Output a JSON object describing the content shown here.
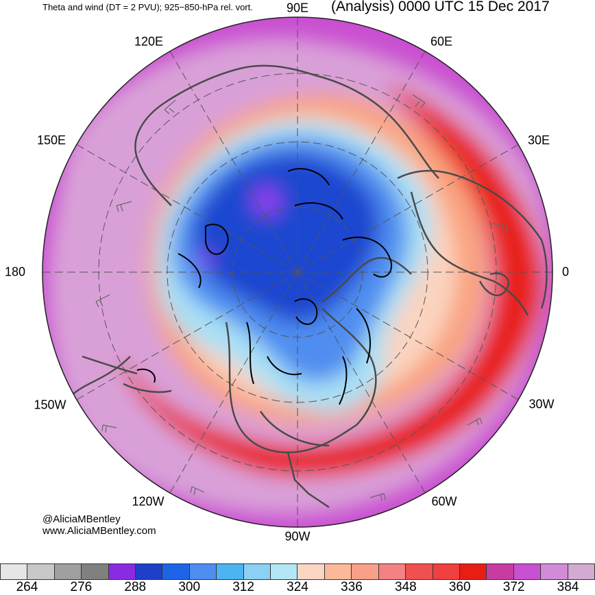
{
  "header": {
    "title_left": "Theta and wind (DT = 2 PVU); 925−850-hPa rel. vort.",
    "title_right": "(Analysis) 0000 UTC 15 Dec 2017"
  },
  "map": {
    "projection": "north-polar-stereographic",
    "longitude_labels": [
      "90E",
      "120E",
      "60E",
      "150E",
      "30E",
      "180",
      "0",
      "150W",
      "30W",
      "120W",
      "60W",
      "90W"
    ],
    "colors": {
      "outer_magenta": "#c94fd1",
      "light_purple": "#d9a0d8",
      "red": "#e8201c",
      "salmon": "#f9a37f",
      "peach": "#fbd4c0",
      "light_blue": "#a9e0f5",
      "mid_blue": "#4f8ef0",
      "deep_blue": "#1e47d0",
      "purple": "#8f3cf0",
      "coast_line": "#4a4a4a",
      "vort_contour": "#000000"
    }
  },
  "credits": {
    "handle": "@AliciaMBentley",
    "site": "www.AliciaMBentley.com"
  },
  "colorbar": {
    "colors": [
      "#e6e6e6",
      "#c8c8c8",
      "#a0a0a0",
      "#808080",
      "#8a2be2",
      "#1e3fc8",
      "#1e64e6",
      "#4f8ef0",
      "#4cb4f0",
      "#8cd0f5",
      "#b4e6f5",
      "#fad6c3",
      "#fbb99a",
      "#f9a08a",
      "#f58282",
      "#f05050",
      "#f04040",
      "#e61e14",
      "#c83ca0",
      "#c850d2",
      "#d28cd7",
      "#d2aad2"
    ],
    "tick_labels": [
      "264",
      "276",
      "288",
      "300",
      "312",
      "324",
      "336",
      "348",
      "360",
      "372",
      "384"
    ]
  }
}
